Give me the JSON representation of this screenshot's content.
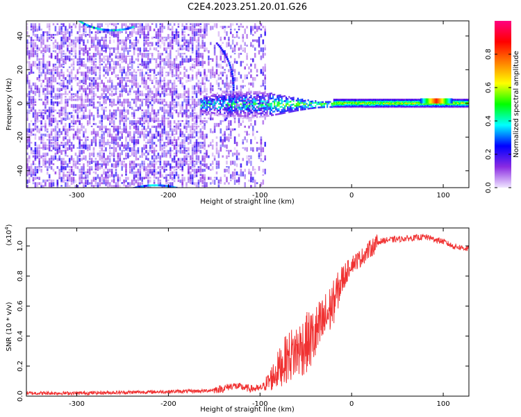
{
  "title": "C2E4.2023.251.20.01.G26",
  "chart_data": [
    {
      "type": "heatmap",
      "xlabel": "Height of straight line (km)",
      "ylabel": "Frequency (Hz)",
      "xlim": [
        -355,
        128
      ],
      "ylim": [
        -50,
        49
      ],
      "x_ticks": [
        "-300",
        "-200",
        "-100",
        "0",
        "100"
      ],
      "y_ticks": [
        "40",
        "20",
        "0",
        "-20",
        "-40"
      ],
      "colorbar": {
        "label": "Normalized spectral amplitude",
        "range": [
          0.0,
          1.0
        ],
        "ticks": [
          "0.0",
          "0.2",
          "0.4",
          "0.6",
          "0.8"
        ],
        "colormap": [
          "#f0e6ff",
          "#8a2be2",
          "#0000ff",
          "#00ffff",
          "#00ff00",
          "#ffff00",
          "#ff8000",
          "#ff0000",
          "#ff0080"
        ]
      },
      "features": [
        {
          "name": "noise region",
          "x_range": [
            -355,
            -95
          ],
          "y_range": [
            -50,
            49
          ],
          "amplitude": 0.15
        },
        {
          "name": "broad central band",
          "x_range": [
            -165,
            -20
          ],
          "y_range": [
            -8,
            8
          ],
          "amplitude": 0.4
        },
        {
          "name": "narrow carrier line",
          "x_range": [
            -20,
            128
          ],
          "y_range": [
            -2,
            3
          ],
          "amplitude": 0.6
        },
        {
          "name": "peak near 90 km",
          "x_range": [
            75,
            110
          ],
          "y_range": [
            0,
            3
          ],
          "amplitude": 0.85
        }
      ]
    },
    {
      "type": "line",
      "xlabel": "Height of straight line (km)",
      "ylabel": "SNR (10 * v/v)",
      "scale_label": "(x10",
      "scale_exponent": "4",
      "xlim": [
        -355,
        128
      ],
      "ylim": [
        0,
        1.12
      ],
      "x_ticks": [
        "-300",
        "-200",
        "-100",
        "0",
        "100"
      ],
      "y_ticks": [
        "0.0",
        "0.2",
        "0.4",
        "0.6",
        "0.8",
        "1.0"
      ],
      "color": "#f03232",
      "control_points": {
        "x": [
          -355,
          -300,
          -250,
          -200,
          -160,
          -140,
          -130,
          -120,
          -110,
          -100,
          -90,
          -80,
          -70,
          -60,
          -50,
          -40,
          -30,
          -20,
          -10,
          0,
          10,
          20,
          30,
          40,
          60,
          80,
          100,
          110,
          128
        ],
        "y": [
          0.02,
          0.02,
          0.025,
          0.03,
          0.035,
          0.05,
          0.07,
          0.06,
          0.05,
          0.05,
          0.1,
          0.18,
          0.26,
          0.3,
          0.35,
          0.4,
          0.5,
          0.62,
          0.78,
          0.88,
          0.92,
          0.98,
          1.03,
          1.04,
          1.05,
          1.06,
          1.03,
          1.0,
          0.98
        ]
      }
    }
  ]
}
